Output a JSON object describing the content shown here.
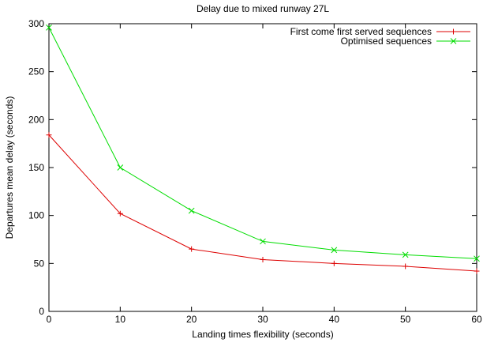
{
  "chart_data": {
    "type": "line",
    "title": "Delay due to mixed runway 27L",
    "xlabel": "Landing times flexibility (seconds)",
    "ylabel": "Departures mean delay (seconds)",
    "xlim": [
      0,
      60
    ],
    "ylim": [
      0,
      300
    ],
    "xticks": [
      0,
      10,
      20,
      30,
      40,
      50,
      60
    ],
    "yticks": [
      0,
      50,
      100,
      150,
      200,
      250,
      300
    ],
    "grid": false,
    "legend_position": "top-right",
    "x": [
      0,
      10,
      20,
      30,
      40,
      50,
      60
    ],
    "series": [
      {
        "name": "First come first served sequences",
        "color": "#dd0000",
        "marker": "plus",
        "values": [
          184,
          102,
          65,
          54,
          50,
          47,
          42
        ]
      },
      {
        "name": "Optimised sequences",
        "color": "#00dd00",
        "marker": "cross",
        "values": [
          296,
          150,
          105,
          73,
          64,
          59,
          55
        ]
      }
    ]
  }
}
